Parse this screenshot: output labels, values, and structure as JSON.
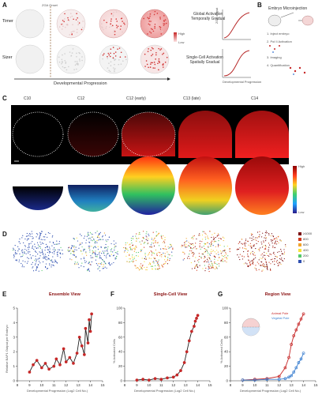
{
  "panels": {
    "A": {
      "letter": "A",
      "rows": [
        "Timer",
        "Sizer"
      ],
      "onset_label": "ZGA Onset",
      "dev_axis_label": "Developmental Progression",
      "mode_labels": [
        "Global Activation\nTemporally Gradual",
        "Single-Cell Activation\nSpatially Gradual"
      ],
      "legend_labels": [
        "High",
        "Low"
      ],
      "mini_y_label": "ZGA output",
      "mini_x_label": "Developmental Progression"
    },
    "B": {
      "letter": "B",
      "title": "Embryo Microinjection",
      "steps": [
        "1. Inject embryo",
        "2. Pol II Activation",
        "3. Imaging",
        "4. Quantification"
      ]
    },
    "C": {
      "letter": "C",
      "stages": [
        "C10",
        "C12",
        "C12 (early)",
        "C13 (late)",
        "C14"
      ],
      "row_tags": [
        "Cy",
        "Vd"
      ],
      "colorbar_labels": [
        "High",
        "Low"
      ]
    },
    "D": {
      "letter": "D",
      "legend": [
        "≥1000",
        "800",
        "600",
        "400",
        "200",
        "0"
      ],
      "colors": [
        "#7a0d10",
        "#d23a1e",
        "#f2a32b",
        "#f7e23a",
        "#55c86b",
        "#2f4fb0"
      ]
    },
    "E": {
      "letter": "E",
      "title": "Ensemble View",
      "ylabel": "Relative BAP1 Output per Embryo",
      "xlabel": "Developmental Progression (Log2 Cell No.)"
    },
    "F": {
      "letter": "F",
      "title": "Single-Cell View",
      "ylabel": "% Activated Cells",
      "xlabel": "Developmental Progression (Log2 Cell No.)"
    },
    "G": {
      "letter": "G",
      "title": "Region View",
      "ylabel": "% Activated Cells",
      "xlabel": "Developmental Progression (Log2 Cell No.)",
      "legend": [
        "Animal Pole",
        "Vegetal Pole"
      ]
    }
  },
  "chart_data": [
    {
      "type": "scatter",
      "title": "Ensemble View",
      "xlabel": "Developmental Progression (Log2 Cell No.)",
      "ylabel": "Relative BAP1 Output per Embryo",
      "xlim": [
        8,
        15
      ],
      "ylim": [
        0,
        5
      ],
      "xticks": [
        8,
        9,
        10,
        11,
        12,
        13,
        14,
        15
      ],
      "yticks": [
        0,
        1,
        2,
        3,
        4,
        5
      ],
      "series": [
        {
          "x": [
            9.0,
            9.3,
            9.6,
            10.0,
            10.3,
            10.6,
            11.0,
            11.2,
            11.5,
            11.8,
            12.0,
            12.3,
            12.6,
            12.9,
            13.1,
            13.3,
            13.5,
            13.6,
            13.8,
            13.9,
            14.0,
            14.1
          ],
          "y": [
            0.6,
            1.1,
            1.4,
            0.9,
            1.2,
            0.8,
            1.0,
            1.5,
            1.1,
            2.2,
            1.3,
            1.6,
            1.2,
            1.9,
            3.0,
            2.4,
            1.8,
            3.6,
            2.6,
            4.2,
            3.4,
            4.6
          ]
        }
      ]
    },
    {
      "type": "scatter",
      "title": "Single-Cell View",
      "xlabel": "Developmental Progression (Log2 Cell No.)",
      "ylabel": "% Activated Cells",
      "xlim": [
        8,
        15
      ],
      "ylim": [
        0,
        100
      ],
      "xticks": [
        8,
        9,
        10,
        11,
        12,
        13,
        14,
        15
      ],
      "yticks": [
        0,
        20,
        40,
        60,
        80,
        100
      ],
      "series": [
        {
          "x": [
            9.0,
            9.5,
            10.0,
            10.5,
            11.0,
            11.5,
            12.0,
            12.3,
            12.6,
            12.9,
            13.1,
            13.3,
            13.5,
            13.7,
            13.8,
            13.9,
            14.0
          ],
          "y": [
            1,
            2,
            1,
            3,
            2,
            4,
            5,
            8,
            14,
            25,
            40,
            55,
            68,
            75,
            82,
            86,
            90
          ]
        }
      ]
    },
    {
      "type": "scatter",
      "title": "Region View",
      "xlabel": "Developmental Progression (Log2 Cell No.)",
      "ylabel": "% Activated Cells",
      "xlim": [
        8,
        15
      ],
      "ylim": [
        0,
        100
      ],
      "xticks": [
        8,
        9,
        10,
        11,
        12,
        13,
        14,
        15
      ],
      "yticks": [
        0,
        20,
        40,
        60,
        80,
        100
      ],
      "series": [
        {
          "name": "Animal Pole",
          "x": [
            9.0,
            10.0,
            11.0,
            12.0,
            12.5,
            12.8,
            13.0,
            13.2,
            13.4,
            13.6,
            13.8,
            14.0
          ],
          "y": [
            1,
            2,
            3,
            6,
            18,
            32,
            50,
            62,
            70,
            78,
            85,
            92
          ]
        },
        {
          "name": "Vegetal Pole",
          "x": [
            9.0,
            10.0,
            11.0,
            12.0,
            12.5,
            12.8,
            13.0,
            13.2,
            13.4,
            13.6,
            13.8,
            14.0
          ],
          "y": [
            1,
            1,
            2,
            2,
            3,
            5,
            7,
            12,
            18,
            25,
            30,
            38
          ]
        }
      ]
    }
  ]
}
